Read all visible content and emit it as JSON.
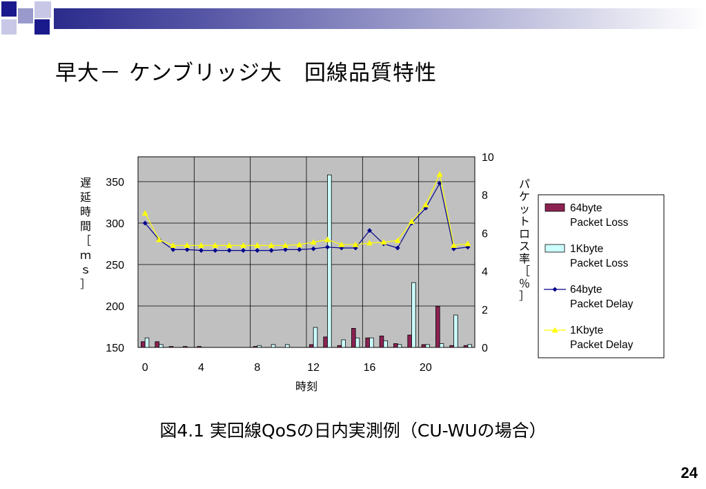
{
  "slide": {
    "title": "早大－ ケンブリッジ大　回線品質特性",
    "caption": "図4.1 実回線QoSの日内実測例（CU-WUの場合）",
    "page_number": "24"
  },
  "colors": {
    "header_gradient_start": "#2b2b8c",
    "header_gradient_end": "#ffffff",
    "plot_background": "#c0c0c0",
    "loss64": "#8b2252",
    "loss1k": "#ccffff",
    "delay64": "#00008b",
    "delay1k": "#ffff00"
  },
  "icons": [
    "slide-corner-squares-icon"
  ],
  "chart_data": {
    "type": "bar+line",
    "title": "",
    "xlabel": "時刻",
    "ylabel_left": "遅延時間［ｍｓ］",
    "ylabel_right": "パケットロス率［％］",
    "x": [
      0,
      1,
      2,
      3,
      4,
      5,
      6,
      7,
      8,
      9,
      10,
      11,
      12,
      13,
      14,
      15,
      16,
      17,
      18,
      19,
      20,
      21,
      22,
      23
    ],
    "xticks": [
      0,
      4,
      8,
      12,
      16,
      20
    ],
    "yleft_lim": [
      150,
      380
    ],
    "yleft_ticks": [
      150,
      200,
      250,
      300,
      350
    ],
    "yright_lim": [
      0,
      10
    ],
    "yright_ticks": [
      0,
      2,
      4,
      6,
      8,
      10
    ],
    "grid": true,
    "legend_position": "right",
    "series": [
      {
        "name": "64byte Packet Loss",
        "kind": "bar",
        "axis": "right",
        "values": [
          0.3,
          0.3,
          0.05,
          0.05,
          0.05,
          0,
          0,
          0,
          0.05,
          0,
          0,
          0,
          0.15,
          0.55,
          0.1,
          1.0,
          0.5,
          0.6,
          0.2,
          0.65,
          0.15,
          2.15,
          0.1,
          0.1
        ]
      },
      {
        "name": "1Kbyte Packet Loss",
        "kind": "bar",
        "axis": "right",
        "values": [
          0.5,
          0.15,
          0,
          0,
          0,
          0,
          0,
          0,
          0.1,
          0.15,
          0.15,
          0,
          1.05,
          9.05,
          0.4,
          0.5,
          0.5,
          0.35,
          0.15,
          3.4,
          0.15,
          0.2,
          1.7,
          0.15
        ]
      },
      {
        "name": "64byte Packet Delay",
        "kind": "line",
        "axis": "left",
        "marker": "diamond",
        "values": [
          300,
          280,
          268,
          268,
          267,
          267,
          267,
          267,
          267,
          267,
          268,
          268,
          269,
          271,
          270,
          270,
          291,
          275,
          270,
          300,
          318,
          348,
          269,
          271
        ]
      },
      {
        "name": "1Kbyte Packet Delay",
        "kind": "line",
        "axis": "left",
        "marker": "triangle",
        "values": [
          312,
          280,
          273,
          273,
          273,
          273,
          273,
          273,
          273,
          273,
          273,
          274,
          277,
          280,
          274,
          274,
          276,
          277,
          279,
          302,
          322,
          359,
          273,
          275
        ]
      }
    ]
  }
}
